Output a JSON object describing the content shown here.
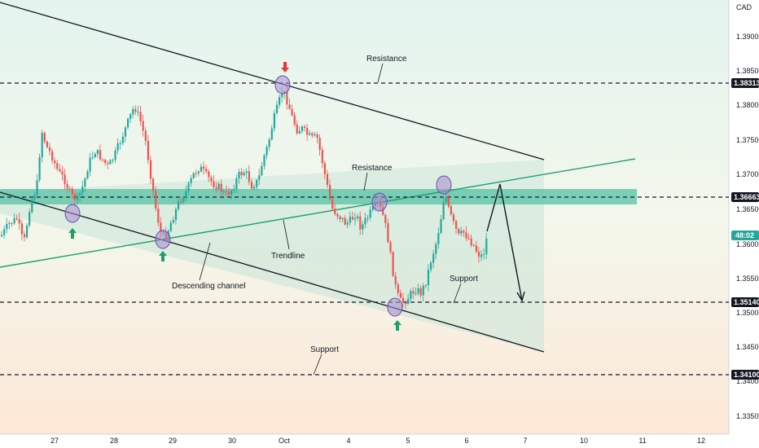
{
  "chart_data": {
    "type": "candlestick",
    "currency": "CAD",
    "price_ticks": [
      "1.39000",
      "1.38500",
      "1.38000",
      "1.37500",
      "1.37000",
      "1.36500",
      "1.36000",
      "1.35500",
      "1.35000",
      "1.34500",
      "1.34000",
      "1.33500"
    ],
    "date_ticks": [
      "27",
      "28",
      "29",
      "30",
      "Oct",
      "4",
      "5",
      "6",
      "7",
      "10",
      "11",
      "12"
    ],
    "levels": [
      {
        "name": "resistance-upper",
        "price": 1.38313,
        "label": "1.38313"
      },
      {
        "name": "resistance-zone",
        "price": 1.36663,
        "label": "1.36663"
      },
      {
        "name": "support-upper",
        "price": 1.3514,
        "label": "1.35140"
      },
      {
        "name": "support-lower",
        "price": 1.341,
        "label": "1.34100"
      }
    ],
    "last_price_badge": "48:02",
    "annotations": [
      "Resistance",
      "Resistance",
      "Trendline",
      "Descending channel",
      "Support",
      "Support"
    ]
  },
  "colors": {
    "up": "#26a69a",
    "down": "#ef5350",
    "zone": "#5fc4aa",
    "channel_fill": "#c8e6d8",
    "trendline": "#1e9e6e",
    "arrow_up": "#1e9e6e",
    "arrow_down": "#e53935",
    "touch": "#9b7fc8",
    "badge": "#131722",
    "last_badge": "#26a69a"
  }
}
